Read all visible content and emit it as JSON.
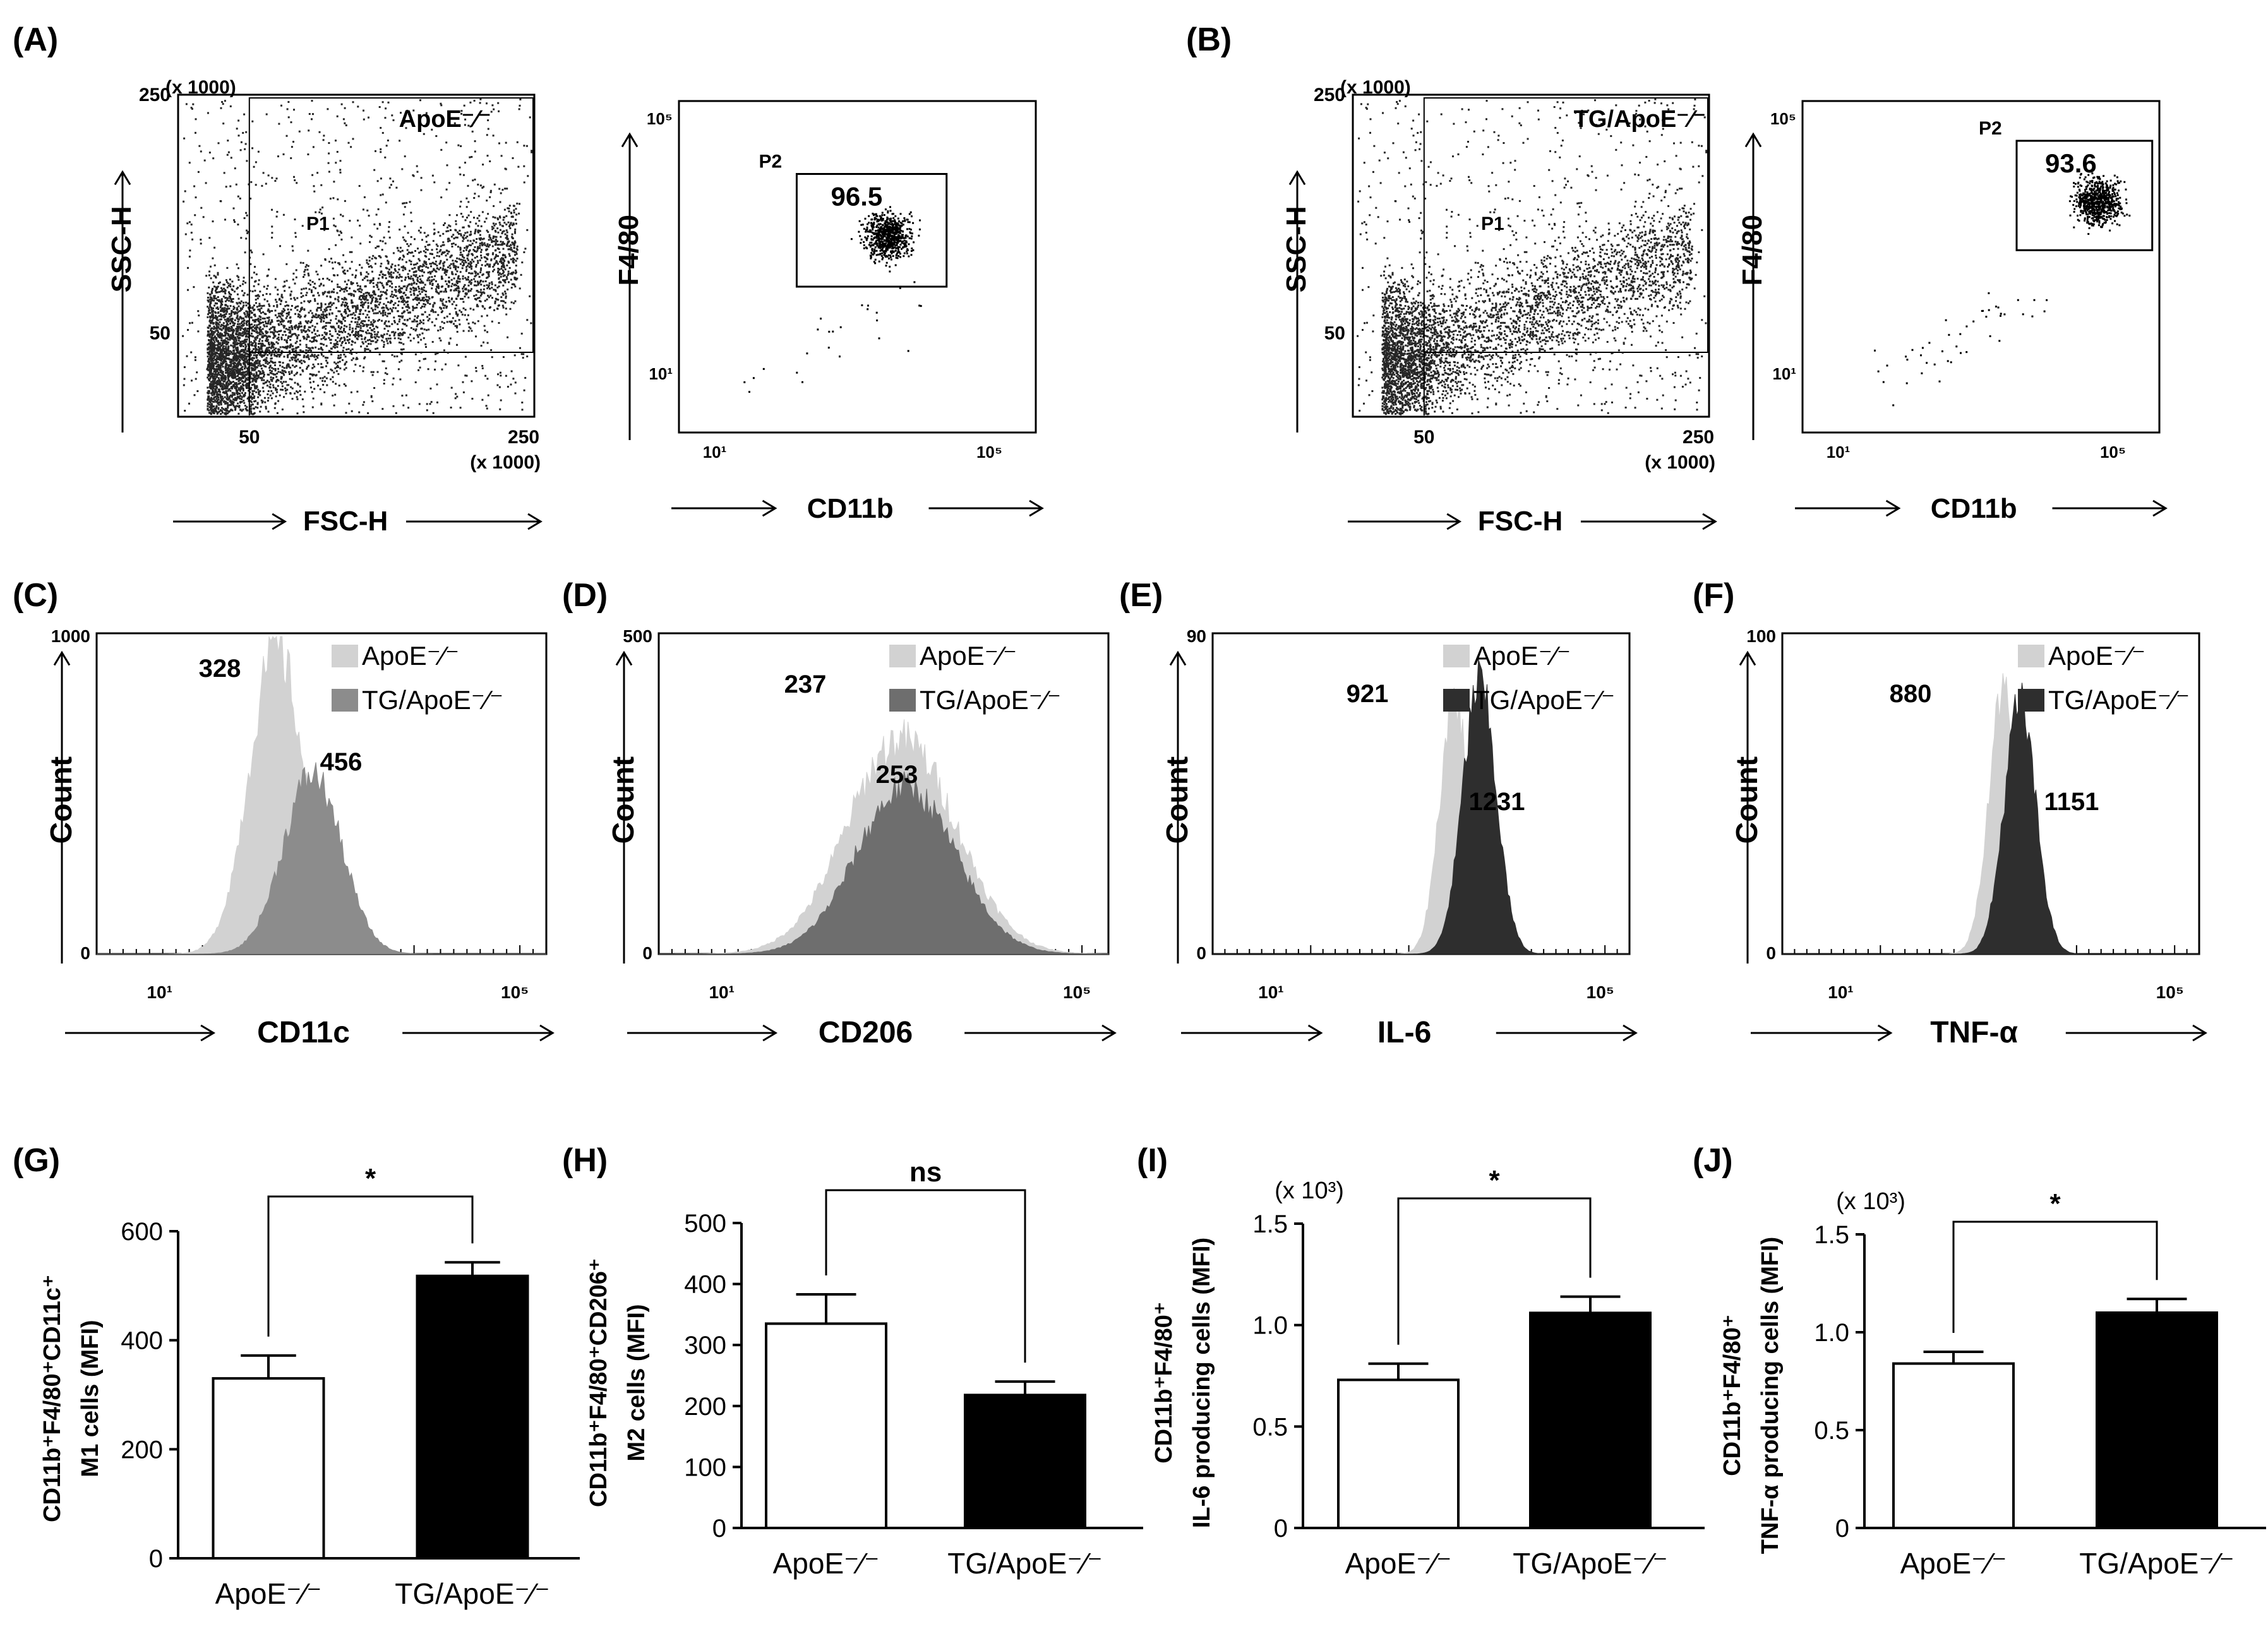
{
  "chart_data": [
    {
      "type": "scatter",
      "panel_label": "(A)",
      "xlabel": "FSC-H",
      "ylabel": "SSC-H",
      "x_unit": "(x 1000)",
      "y_unit": "(x 1000)",
      "x_ticks": [
        "50",
        "250"
      ],
      "y_ticks": [
        "50",
        "250"
      ],
      "annotations": [
        "ApoE-/-",
        "P1"
      ],
      "genotype": "ApoE-/-"
    },
    {
      "type": "scatter",
      "panel_label": "",
      "scale": "log",
      "xlabel": "CD11b",
      "ylabel": "F4/80",
      "x_ticks": [
        "10¹",
        "10⁵"
      ],
      "y_ticks": [
        "10¹",
        "10⁵"
      ],
      "gate": {
        "label": "P2",
        "percent": "96.5"
      }
    },
    {
      "type": "scatter",
      "panel_label": "(B)",
      "xlabel": "FSC-H",
      "ylabel": "SSC-H",
      "x_unit": "(x 1000)",
      "y_unit": "(x 1000)",
      "x_ticks": [
        "50",
        "250"
      ],
      "y_ticks": [
        "50",
        "250"
      ],
      "annotations": [
        "TG/ApoE-/-",
        "P1"
      ],
      "genotype": "TG/ApoE-/-"
    },
    {
      "type": "scatter",
      "panel_label": "",
      "scale": "log",
      "xlabel": "CD11b",
      "ylabel": "F4/80",
      "x_ticks": [
        "10¹",
        "10⁵"
      ],
      "y_ticks": [
        "10¹",
        "10⁵"
      ],
      "gate": {
        "label": "P2",
        "percent": "93.6"
      }
    },
    {
      "type": "area",
      "panel_label": "(C)",
      "xlabel": "CD11c",
      "ylabel": "Count",
      "x_ticks": [
        "10¹",
        "10⁵"
      ],
      "ylim": [
        0,
        1000
      ],
      "y_ticks": [
        "0",
        "1000"
      ],
      "series": [
        {
          "name": "ApoE-/-",
          "mfi": "328",
          "color": "#d2d2d2"
        },
        {
          "name": "TG/ApoE-/-",
          "mfi": "456",
          "color": "#8c8c8c"
        }
      ]
    },
    {
      "type": "area",
      "panel_label": "(D)",
      "xlabel": "CD206",
      "ylabel": "Count",
      "x_ticks": [
        "10¹",
        "10⁵"
      ],
      "ylim": [
        0,
        500
      ],
      "y_ticks": [
        "0",
        "500"
      ],
      "series": [
        {
          "name": "ApoE-/-",
          "mfi": "237",
          "color": "#d2d2d2"
        },
        {
          "name": "TG/ApoE-/-",
          "mfi": "253",
          "color": "#6e6e6e"
        }
      ]
    },
    {
      "type": "area",
      "panel_label": "(E)",
      "xlabel": "IL-6",
      "ylabel": "Count",
      "x_ticks": [
        "10¹",
        "10⁵"
      ],
      "ylim": [
        0,
        90
      ],
      "y_ticks": [
        "0",
        "90"
      ],
      "series": [
        {
          "name": "ApoE-/-",
          "mfi": "921",
          "color": "#d2d2d2"
        },
        {
          "name": "TG/ApoE-/-",
          "mfi": "1231",
          "color": "#2e2e2e"
        }
      ]
    },
    {
      "type": "area",
      "panel_label": "(F)",
      "xlabel": "TNF-α",
      "ylabel": "Count",
      "x_ticks": [
        "10¹",
        "10⁵"
      ],
      "ylim": [
        0,
        100
      ],
      "y_ticks": [
        "0",
        "100"
      ],
      "series": [
        {
          "name": "ApoE-/-",
          "mfi": "880",
          "color": "#d2d2d2"
        },
        {
          "name": "TG/ApoE-/-",
          "mfi": "1151",
          "color": "#2e2e2e"
        }
      ]
    },
    {
      "type": "bar",
      "panel_label": "(G)",
      "ylabel_line1": "CD11b+F4/80+CD11c+",
      "ylabel_line2": "M1 cells (MFI)",
      "categories": [
        "ApoE-/-",
        "TG/ApoE-/-"
      ],
      "values": [
        330,
        518
      ],
      "errors": [
        42,
        25
      ],
      "ylim": [
        0,
        600
      ],
      "y_ticks": [
        "0",
        "200",
        "400",
        "600"
      ],
      "significance": "*",
      "bar_colors": [
        "#ffffff",
        "#000000"
      ]
    },
    {
      "type": "bar",
      "panel_label": "(H)",
      "ylabel_line1": "CD11b+F4/80+CD206+",
      "ylabel_line2": "M2 cells (MFI)",
      "categories": [
        "ApoE-/-",
        "TG/ApoE-/-"
      ],
      "values": [
        335,
        218
      ],
      "errors": [
        48,
        22
      ],
      "ylim": [
        0,
        500
      ],
      "y_ticks": [
        "0",
        "100",
        "200",
        "300",
        "400",
        "500"
      ],
      "significance": "ns",
      "bar_colors": [
        "#ffffff",
        "#000000"
      ]
    },
    {
      "type": "bar",
      "panel_label": "(I)",
      "ylabel_line1": "CD11b+F4/80+",
      "ylabel_line2": "IL-6 producing cells (MFI)",
      "y_unit": "(x 10³)",
      "categories": [
        "ApoE-/-",
        "TG/ApoE-/-"
      ],
      "values": [
        0.73,
        1.06
      ],
      "errors": [
        0.08,
        0.08
      ],
      "ylim": [
        0,
        1.5
      ],
      "y_ticks": [
        "0",
        "0.5",
        "1.0",
        "1.5"
      ],
      "significance": "*",
      "bar_colors": [
        "#ffffff",
        "#000000"
      ]
    },
    {
      "type": "bar",
      "panel_label": "(J)",
      "ylabel_line1": "CD11b+F4/80+",
      "ylabel_line2": "TNF-α producing cells (MFI)",
      "y_unit": "(x 10³)",
      "categories": [
        "ApoE-/-",
        "TG/ApoE-/-"
      ],
      "values": [
        0.84,
        1.1
      ],
      "errors": [
        0.06,
        0.07
      ],
      "ylim": [
        0,
        1.5
      ],
      "y_ticks": [
        "0",
        "0.5",
        "1.0",
        "1.5"
      ],
      "significance": "*",
      "bar_colors": [
        "#ffffff",
        "#000000"
      ]
    }
  ]
}
